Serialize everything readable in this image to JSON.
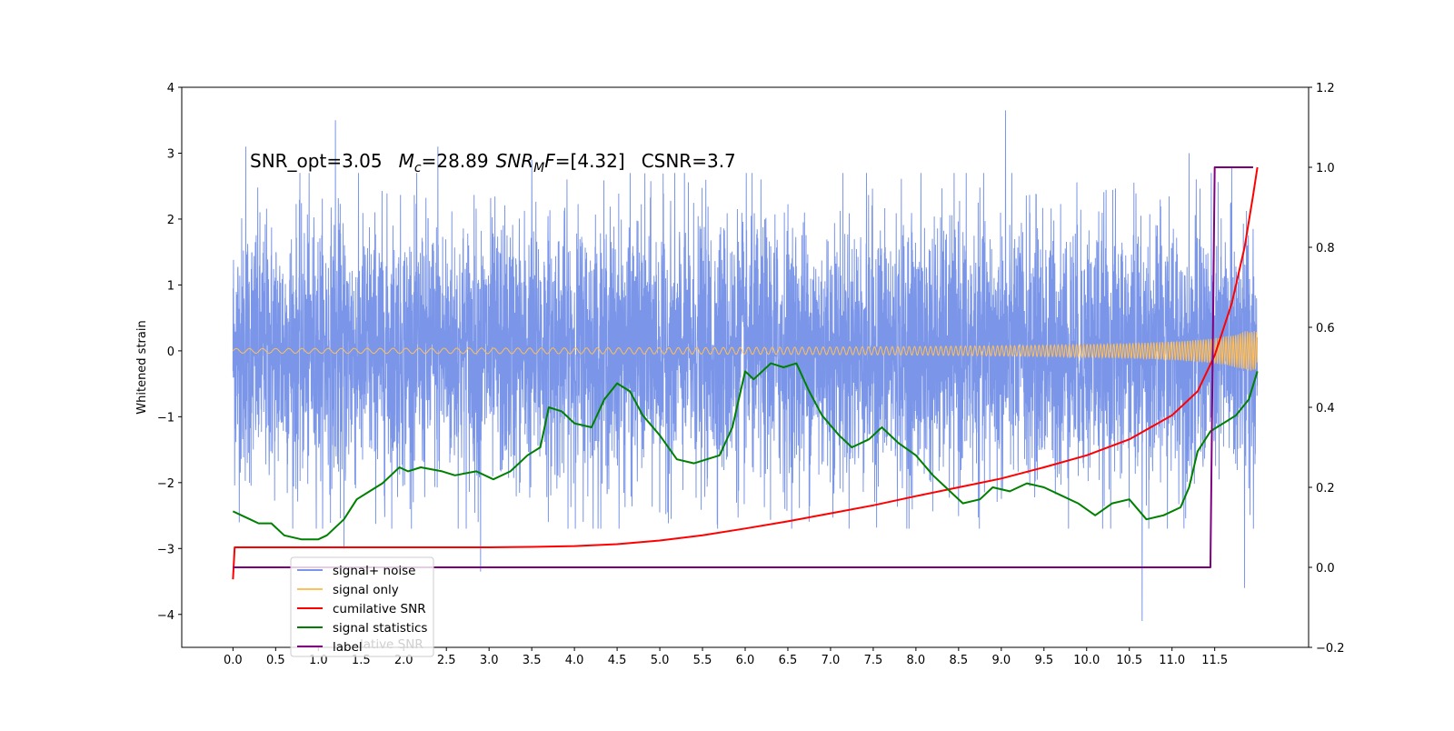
{
  "chart_data": {
    "type": "line",
    "annotation": {
      "snr_opt": "SNR_opt=3.05",
      "mc_symbol": "M",
      "mc_sub": "c",
      "mc_value": "=28.89",
      "snrmf_symbol": "SNR",
      "snrmf_sub": "M",
      "snrmf_tail": "F",
      "snrmf_value": "=[4.32]",
      "csnr": "CSNR=3.7"
    },
    "ylabel": "Whitened strain",
    "xlim": [
      -0.6,
      12.6
    ],
    "ylim_left": [
      -4.5,
      4.0
    ],
    "ylim_right": [
      -0.2,
      1.2
    ],
    "x_ticks": [
      "0.0",
      "0.5",
      "1.0",
      "1.5",
      "2.0",
      "2.5",
      "3.0",
      "3.5",
      "4.0",
      "4.5",
      "5.0",
      "5.5",
      "6.0",
      "6.5",
      "7.0",
      "7.5",
      "8.0",
      "8.5",
      "9.0",
      "9.5",
      "10.0",
      "10.5",
      "11.0",
      "11.5"
    ],
    "y_ticks_left": [
      "4",
      "3",
      "2",
      "1",
      "0",
      "−1",
      "−2",
      "−3",
      "−4"
    ],
    "y_ticks_right": [
      "1.2",
      "1.0",
      "0.8",
      "0.6",
      "0.4",
      "0.2",
      "0.0",
      "−0.2"
    ],
    "legend": {
      "placement": "lower-left",
      "entries": [
        {
          "label": "signal+ noise",
          "color": "#7b96e8"
        },
        {
          "label": "signal only",
          "color": "#ffbf5a"
        },
        {
          "label": "cumilative SNR",
          "color": "#ff0000"
        },
        {
          "label": "signal statistics",
          "color": "#008000"
        },
        {
          "label": "label",
          "color": "#800080"
        }
      ],
      "ghost_text": "lative SNR"
    },
    "series": [
      {
        "name": "signal+ noise",
        "axis": "left",
        "color": "#7b96e8",
        "x_range": [
          0.0,
          12.0
        ],
        "envelope_typical": 1.6,
        "spikes": [
          {
            "x": 0.15,
            "y": 3.1
          },
          {
            "x": 1.2,
            "y": 3.5
          },
          {
            "x": 2.4,
            "y": 3.1
          },
          {
            "x": 3.5,
            "y": 2.9
          },
          {
            "x": 9.05,
            "y": 3.65
          },
          {
            "x": 11.2,
            "y": 3.0
          },
          {
            "x": 11.7,
            "y": 2.8
          },
          {
            "x": 1.3,
            "y": -3.0
          },
          {
            "x": 2.9,
            "y": -3.35
          },
          {
            "x": 9.05,
            "y": -3.35
          },
          {
            "x": 10.65,
            "y": -4.1
          },
          {
            "x": 11.85,
            "y": -3.6
          }
        ]
      },
      {
        "name": "signal only",
        "axis": "left",
        "color": "#ffbf5a",
        "x_range": [
          0.0,
          12.0
        ],
        "peak_amplitude_end": 0.3
      },
      {
        "name": "cumilative SNR",
        "axis": "right",
        "color": "#ff0000",
        "points": [
          [
            0.0,
            -0.03
          ],
          [
            0.02,
            0.05
          ],
          [
            1.0,
            0.05
          ],
          [
            2.0,
            0.05
          ],
          [
            3.0,
            0.05
          ],
          [
            3.5,
            0.051
          ],
          [
            4.0,
            0.053
          ],
          [
            4.5,
            0.058
          ],
          [
            5.0,
            0.067
          ],
          [
            5.5,
            0.08
          ],
          [
            6.0,
            0.097
          ],
          [
            6.5,
            0.115
          ],
          [
            7.0,
            0.135
          ],
          [
            7.5,
            0.155
          ],
          [
            8.0,
            0.178
          ],
          [
            8.5,
            0.2
          ],
          [
            9.0,
            0.222
          ],
          [
            9.5,
            0.25
          ],
          [
            10.0,
            0.28
          ],
          [
            10.5,
            0.32
          ],
          [
            11.0,
            0.38
          ],
          [
            11.3,
            0.44
          ],
          [
            11.5,
            0.53
          ],
          [
            11.7,
            0.66
          ],
          [
            11.85,
            0.8
          ],
          [
            11.95,
            0.93
          ],
          [
            12.0,
            1.0
          ]
        ]
      },
      {
        "name": "signal statistics",
        "axis": "right",
        "color": "#008000",
        "points": [
          [
            0.0,
            0.14
          ],
          [
            0.1,
            0.13
          ],
          [
            0.2,
            0.12
          ],
          [
            0.3,
            0.11
          ],
          [
            0.45,
            0.11
          ],
          [
            0.6,
            0.08
          ],
          [
            0.8,
            0.07
          ],
          [
            1.0,
            0.07
          ],
          [
            1.1,
            0.08
          ],
          [
            1.3,
            0.12
          ],
          [
            1.45,
            0.17
          ],
          [
            1.6,
            0.19
          ],
          [
            1.75,
            0.21
          ],
          [
            1.85,
            0.23
          ],
          [
            1.95,
            0.25
          ],
          [
            2.05,
            0.24
          ],
          [
            2.2,
            0.25
          ],
          [
            2.45,
            0.24
          ],
          [
            2.6,
            0.23
          ],
          [
            2.85,
            0.24
          ],
          [
            3.05,
            0.22
          ],
          [
            3.25,
            0.24
          ],
          [
            3.45,
            0.28
          ],
          [
            3.6,
            0.3
          ],
          [
            3.7,
            0.4
          ],
          [
            3.85,
            0.39
          ],
          [
            4.0,
            0.36
          ],
          [
            4.2,
            0.35
          ],
          [
            4.35,
            0.42
          ],
          [
            4.5,
            0.46
          ],
          [
            4.65,
            0.44
          ],
          [
            4.8,
            0.38
          ],
          [
            5.0,
            0.33
          ],
          [
            5.2,
            0.27
          ],
          [
            5.4,
            0.26
          ],
          [
            5.55,
            0.27
          ],
          [
            5.7,
            0.28
          ],
          [
            5.85,
            0.35
          ],
          [
            6.0,
            0.49
          ],
          [
            6.1,
            0.47
          ],
          [
            6.3,
            0.51
          ],
          [
            6.45,
            0.5
          ],
          [
            6.6,
            0.51
          ],
          [
            6.75,
            0.44
          ],
          [
            6.9,
            0.38
          ],
          [
            7.1,
            0.33
          ],
          [
            7.25,
            0.3
          ],
          [
            7.45,
            0.32
          ],
          [
            7.6,
            0.35
          ],
          [
            7.8,
            0.31
          ],
          [
            8.0,
            0.28
          ],
          [
            8.2,
            0.23
          ],
          [
            8.35,
            0.2
          ],
          [
            8.55,
            0.16
          ],
          [
            8.75,
            0.17
          ],
          [
            8.9,
            0.2
          ],
          [
            9.1,
            0.19
          ],
          [
            9.3,
            0.21
          ],
          [
            9.5,
            0.2
          ],
          [
            9.7,
            0.18
          ],
          [
            9.9,
            0.16
          ],
          [
            10.1,
            0.13
          ],
          [
            10.3,
            0.16
          ],
          [
            10.5,
            0.17
          ],
          [
            10.7,
            0.12
          ],
          [
            10.9,
            0.13
          ],
          [
            11.1,
            0.15
          ],
          [
            11.2,
            0.2
          ],
          [
            11.3,
            0.29
          ],
          [
            11.45,
            0.34
          ],
          [
            11.6,
            0.36
          ],
          [
            11.75,
            0.38
          ],
          [
            11.9,
            0.42
          ],
          [
            12.0,
            0.49
          ]
        ]
      },
      {
        "name": "label",
        "axis": "right",
        "color": "#800080",
        "points": [
          [
            0.0,
            0.0
          ],
          [
            11.45,
            0.0
          ],
          [
            11.5,
            1.0
          ],
          [
            11.95,
            1.0
          ]
        ]
      }
    ]
  }
}
